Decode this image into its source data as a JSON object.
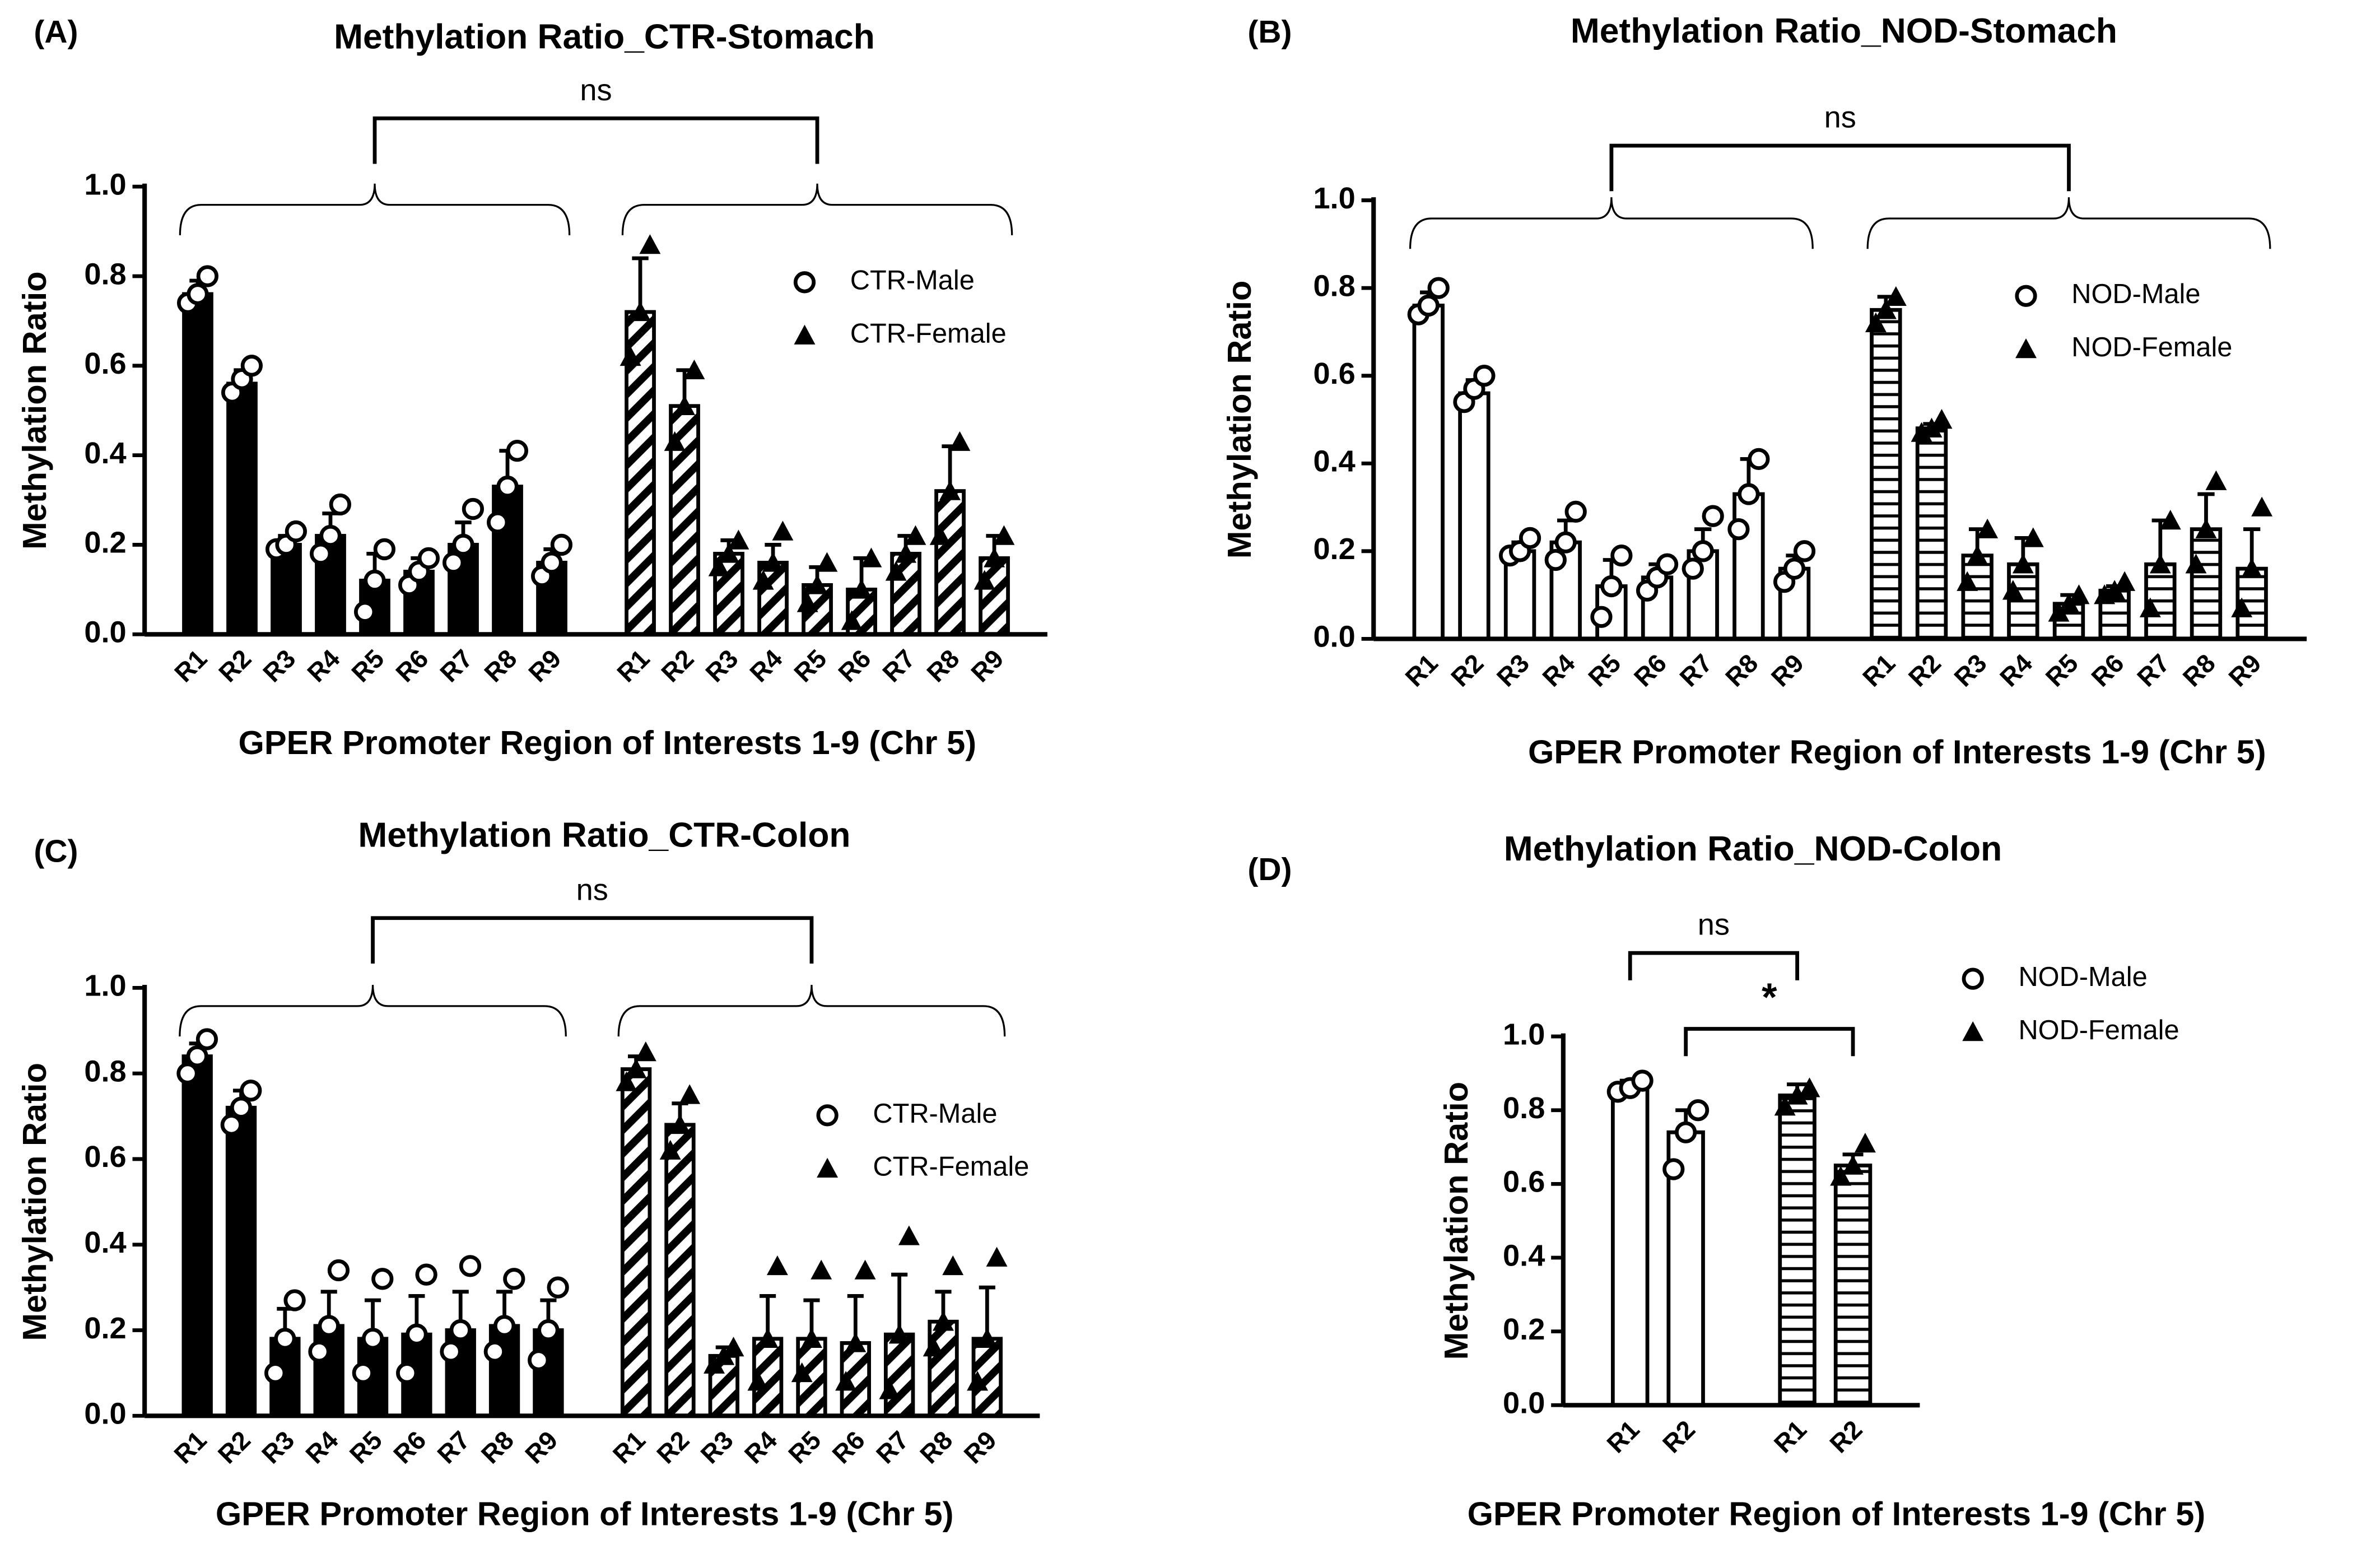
{
  "chart_data": [
    {
      "type": "bar",
      "panel": "(A)",
      "title": "Methylation Ratio_CTR-Stomach",
      "xlabel": "GPER Promoter Region of Interests 1-9 (Chr 5)",
      "ylabel": "Methylation Ratio",
      "categories": [
        "R1",
        "R2",
        "R3",
        "R4",
        "R5",
        "R6",
        "R7",
        "R8",
        "R9"
      ],
      "series": [
        {
          "name": "CTR-Male",
          "marker": "circle",
          "pattern": "solid",
          "color": "#000000",
          "values": [
            0.76,
            0.56,
            0.2,
            0.22,
            0.12,
            0.14,
            0.2,
            0.33,
            0.16
          ],
          "errors": [
            0.03,
            0.03,
            0.02,
            0.05,
            0.06,
            0.03,
            0.05,
            0.08,
            0.03
          ],
          "points": [
            [
              0.74,
              0.76,
              0.8
            ],
            [
              0.54,
              0.57,
              0.6
            ],
            [
              0.19,
              0.2,
              0.23
            ],
            [
              0.18,
              0.22,
              0.29
            ],
            [
              0.05,
              0.12,
              0.19
            ],
            [
              0.11,
              0.14,
              0.17
            ],
            [
              0.16,
              0.2,
              0.28
            ],
            [
              0.25,
              0.33,
              0.41
            ],
            [
              0.13,
              0.16,
              0.2
            ]
          ]
        },
        {
          "name": "CTR-Female",
          "marker": "triangle",
          "pattern": "diagonal",
          "color": "#000000",
          "values": [
            0.72,
            0.51,
            0.18,
            0.16,
            0.11,
            0.1,
            0.18,
            0.32,
            0.17
          ],
          "errors": [
            0.12,
            0.08,
            0.03,
            0.04,
            0.04,
            0.07,
            0.04,
            0.1,
            0.05
          ],
          "points": [
            [
              0.62,
              0.72,
              0.87
            ],
            [
              0.43,
              0.51,
              0.59
            ],
            [
              0.15,
              0.18,
              0.21
            ],
            [
              0.12,
              0.16,
              0.23
            ],
            [
              0.07,
              0.11,
              0.16
            ],
            [
              0.03,
              0.1,
              0.17
            ],
            [
              0.14,
              0.18,
              0.22
            ],
            [
              0.22,
              0.32,
              0.43
            ],
            [
              0.12,
              0.17,
              0.22
            ]
          ]
        }
      ],
      "annotations": [
        "ns"
      ],
      "ylim": [
        0,
        1
      ],
      "yticks": [
        {
          "value": 0,
          "label": "0.0"
        },
        {
          "value": 0.2,
          "label": "0.2"
        },
        {
          "value": 0.4,
          "label": "0.4"
        },
        {
          "value": 0.6,
          "label": "0.6"
        },
        {
          "value": 0.8,
          "label": "0.8"
        },
        {
          "value": 1,
          "label": "1.0"
        }
      ]
    },
    {
      "type": "bar",
      "panel": "(B)",
      "title": "Methylation Ratio_NOD-Stomach",
      "xlabel": "GPER Promoter Region of Interests 1-9 (Chr 5)",
      "ylabel": "Methylation Ratio",
      "categories": [
        "R1",
        "R2",
        "R3",
        "R4",
        "R5",
        "R6",
        "R7",
        "R8",
        "R9"
      ],
      "series": [
        {
          "name": "NOD-Male",
          "marker": "circle",
          "pattern": "open",
          "color": "#000000",
          "values": [
            0.76,
            0.56,
            0.2,
            0.22,
            0.12,
            0.14,
            0.2,
            0.33,
            0.16
          ],
          "errors": [
            0.03,
            0.03,
            0.02,
            0.05,
            0.06,
            0.03,
            0.05,
            0.08,
            0.03
          ],
          "points": [
            [
              0.74,
              0.76,
              0.8
            ],
            [
              0.54,
              0.57,
              0.6
            ],
            [
              0.19,
              0.2,
              0.23
            ],
            [
              0.18,
              0.22,
              0.29
            ],
            [
              0.05,
              0.12,
              0.19
            ],
            [
              0.11,
              0.14,
              0.17
            ],
            [
              0.16,
              0.2,
              0.28
            ],
            [
              0.25,
              0.33,
              0.41
            ],
            [
              0.13,
              0.16,
              0.2
            ]
          ]
        },
        {
          "name": "NOD-Female",
          "marker": "triangle",
          "pattern": "horizontal",
          "color": "#000000",
          "values": [
            0.75,
            0.48,
            0.19,
            0.17,
            0.08,
            0.11,
            0.17,
            0.25,
            0.16
          ],
          "errors": [
            0.03,
            0.01,
            0.06,
            0.06,
            0.02,
            0.01,
            0.1,
            0.08,
            0.09
          ],
          "points": [
            [
              0.72,
              0.75,
              0.78
            ],
            [
              0.47,
              0.48,
              0.5
            ],
            [
              0.13,
              0.19,
              0.25
            ],
            [
              0.11,
              0.17,
              0.23
            ],
            [
              0.06,
              0.08,
              0.1
            ],
            [
              0.1,
              0.11,
              0.13
            ],
            [
              0.07,
              0.17,
              0.27
            ],
            [
              0.17,
              0.25,
              0.36
            ],
            [
              0.07,
              0.16,
              0.3
            ]
          ]
        }
      ],
      "annotations": [
        "ns"
      ],
      "ylim": [
        0,
        1
      ],
      "yticks": [
        {
          "value": 0,
          "label": "0.0"
        },
        {
          "value": 0.2,
          "label": "0.2"
        },
        {
          "value": 0.4,
          "label": "0.4"
        },
        {
          "value": 0.6,
          "label": "0.6"
        },
        {
          "value": 0.8,
          "label": "0.8"
        },
        {
          "value": 1,
          "label": "1.0"
        }
      ]
    },
    {
      "type": "bar",
      "panel": "(C)",
      "title": "Methylation Ratio_CTR-Colon",
      "xlabel": "GPER Promoter Region of Interests 1-9 (Chr 5)",
      "ylabel": "Methylation Ratio",
      "categories": [
        "R1",
        "R2",
        "R3",
        "R4",
        "R5",
        "R6",
        "R7",
        "R8",
        "R9"
      ],
      "series": [
        {
          "name": "CTR-Male",
          "marker": "circle",
          "pattern": "solid",
          "color": "#000000",
          "values": [
            0.84,
            0.72,
            0.18,
            0.21,
            0.18,
            0.19,
            0.2,
            0.21,
            0.2
          ],
          "errors": [
            0.03,
            0.04,
            0.07,
            0.08,
            0.09,
            0.09,
            0.09,
            0.08,
            0.07
          ],
          "points": [
            [
              0.8,
              0.84,
              0.88
            ],
            [
              0.68,
              0.72,
              0.76
            ],
            [
              0.1,
              0.18,
              0.27
            ],
            [
              0.15,
              0.21,
              0.34
            ],
            [
              0.1,
              0.18,
              0.32
            ],
            [
              0.1,
              0.19,
              0.33
            ],
            [
              0.15,
              0.2,
              0.35
            ],
            [
              0.15,
              0.21,
              0.32
            ],
            [
              0.13,
              0.2,
              0.3
            ]
          ]
        },
        {
          "name": "CTR-Female",
          "marker": "triangle",
          "pattern": "diagonal",
          "color": "#000000",
          "values": [
            0.81,
            0.68,
            0.14,
            0.18,
            0.18,
            0.17,
            0.19,
            0.22,
            0.18
          ],
          "errors": [
            0.03,
            0.05,
            0.02,
            0.1,
            0.09,
            0.11,
            0.14,
            0.07,
            0.12
          ],
          "points": [
            [
              0.78,
              0.81,
              0.85
            ],
            [
              0.62,
              0.68,
              0.75
            ],
            [
              0.12,
              0.14,
              0.16
            ],
            [
              0.08,
              0.18,
              0.35
            ],
            [
              0.1,
              0.18,
              0.34
            ],
            [
              0.08,
              0.17,
              0.34
            ],
            [
              0.06,
              0.19,
              0.42
            ],
            [
              0.16,
              0.22,
              0.35
            ],
            [
              0.08,
              0.18,
              0.37
            ]
          ]
        }
      ],
      "annotations": [
        "ns"
      ],
      "ylim": [
        0,
        1
      ],
      "yticks": [
        {
          "value": 0,
          "label": "0.0"
        },
        {
          "value": 0.2,
          "label": "0.2"
        },
        {
          "value": 0.4,
          "label": "0.4"
        },
        {
          "value": 0.6,
          "label": "0.6"
        },
        {
          "value": 0.8,
          "label": "0.8"
        },
        {
          "value": 1,
          "label": "1.0"
        }
      ]
    },
    {
      "type": "bar",
      "panel": "(D)",
      "title": "Methylation Ratio_NOD-Colon",
      "xlabel": "GPER Promoter Region of Interests 1-9 (Chr 5)",
      "ylabel": "Methylation Ratio",
      "categories": [
        "R1",
        "R2"
      ],
      "series": [
        {
          "name": "NOD-Male",
          "marker": "circle",
          "pattern": "open",
          "color": "#000000",
          "values": [
            0.86,
            0.74
          ],
          "errors": [
            0.02,
            0.06
          ],
          "points": [
            [
              0.85,
              0.86,
              0.88
            ],
            [
              0.64,
              0.74,
              0.8
            ]
          ]
        },
        {
          "name": "NOD-Female",
          "marker": "triangle",
          "pattern": "horizontal",
          "color": "#000000",
          "values": [
            0.84,
            0.65
          ],
          "errors": [
            0.03,
            0.03
          ],
          "points": [
            [
              0.81,
              0.84,
              0.86
            ],
            [
              0.62,
              0.65,
              0.71
            ]
          ]
        }
      ],
      "annotations": [
        "ns",
        "*"
      ],
      "ylim": [
        0,
        1
      ],
      "yticks": [
        {
          "value": 0,
          "label": "0.0"
        },
        {
          "value": 0.2,
          "label": "0.2"
        },
        {
          "value": 0.4,
          "label": "0.4"
        },
        {
          "value": 0.6,
          "label": "0.6"
        },
        {
          "value": 0.8,
          "label": "0.8"
        },
        {
          "value": 1,
          "label": "1.0"
        }
      ]
    }
  ]
}
